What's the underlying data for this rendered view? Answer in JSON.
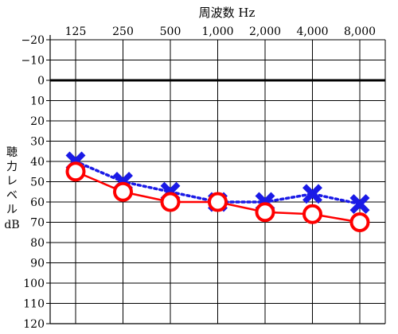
{
  "chart_data": {
    "type": "line",
    "title": "周波数 Hz",
    "ylabel": [
      "聴",
      "力",
      "レ",
      "ベ",
      "ル",
      "dB"
    ],
    "categories": [
      "125",
      "250",
      "500",
      "1,000",
      "2,000",
      "4,000",
      "8,000"
    ],
    "y_ticks": [
      "−20",
      "−10",
      "0",
      "10",
      "20",
      "30",
      "40",
      "50",
      "60",
      "70",
      "80",
      "90",
      "100",
      "110",
      "120"
    ],
    "ylim": [
      -20,
      120
    ],
    "y_reversed": true,
    "grid": true,
    "series": [
      {
        "values": [
          45,
          55,
          60,
          60,
          65,
          66,
          70
        ],
        "marker": "circle",
        "line": "solid",
        "color": "#ff0000"
      },
      {
        "values": [
          40,
          50,
          55,
          60,
          60,
          56,
          61
        ],
        "marker": "x",
        "line": "dotted",
        "color": "#1a1ae6"
      }
    ]
  }
}
